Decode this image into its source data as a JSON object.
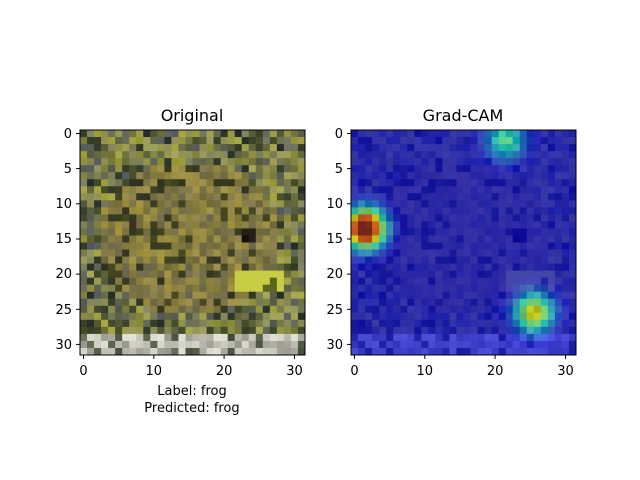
{
  "panels": [
    {
      "title": "Original",
      "xticks": [
        "0",
        "10",
        "20",
        "30"
      ],
      "yticks": [
        "0",
        "5",
        "10",
        "15",
        "20",
        "25",
        "30"
      ],
      "caption": [
        "Label: frog",
        "Predicted: frog"
      ],
      "image": "32x32 pixelated photo of a green-brown frog on mossy ground"
    },
    {
      "title": "Grad-CAM",
      "xticks": [
        "0",
        "10",
        "20",
        "30"
      ],
      "yticks": [
        "0",
        "5",
        "10",
        "15",
        "20",
        "25",
        "30"
      ],
      "image": "frog image overlaid with a jet-colormap heatmap, mostly dark blue",
      "hotspots": [
        {
          "row": 13.5,
          "col": 1.5,
          "intensity": 1.0
        },
        {
          "row": 25.5,
          "col": 25.5,
          "intensity": 0.55
        },
        {
          "row": 1.0,
          "col": 21.5,
          "intensity": 0.35
        }
      ]
    }
  ],
  "colors": {
    "frog_base": "#6b6a45",
    "frog_highlight": "#c9d04a",
    "heatmap_low": "#0a0f73",
    "heatmap_high": "#8b0000"
  }
}
